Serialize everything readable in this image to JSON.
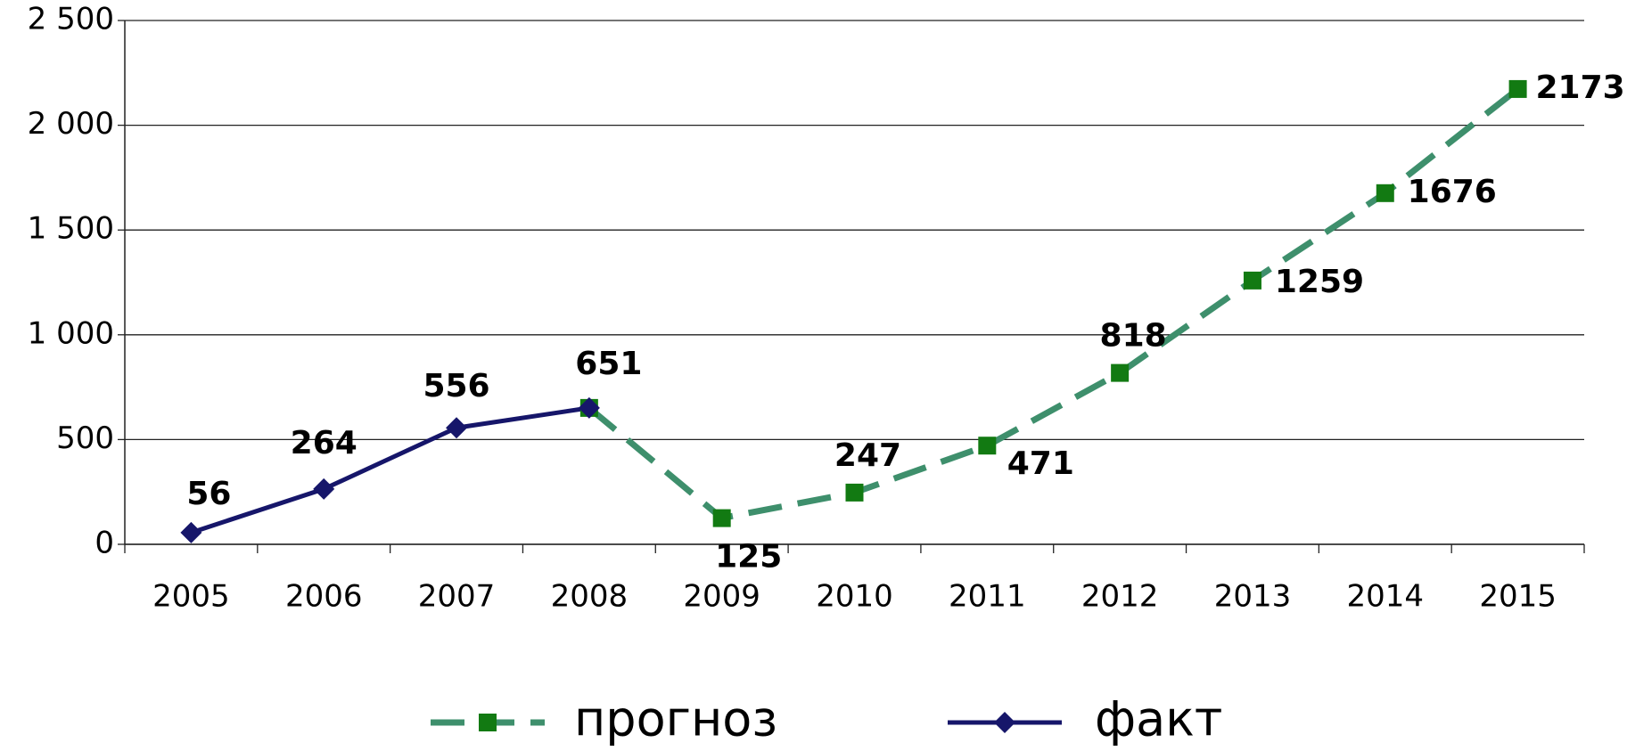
{
  "chart_data": {
    "type": "line",
    "categories": [
      "2005",
      "2006",
      "2007",
      "2008",
      "2009",
      "2010",
      "2011",
      "2012",
      "2013",
      "2014",
      "2015"
    ],
    "series": [
      {
        "name": "прогноз",
        "color": "#3e8f6c",
        "marker_color": "#127a12",
        "marker": "square",
        "dashed": true,
        "values": [
          null,
          null,
          null,
          651,
          125,
          247,
          471,
          818,
          1259,
          1676,
          2173
        ]
      },
      {
        "name": "факт",
        "color": "#16166a",
        "marker_color": "#16166a",
        "marker": "diamond",
        "dashed": false,
        "values": [
          56,
          264,
          556,
          651,
          null,
          null,
          null,
          null,
          null,
          null,
          null
        ]
      }
    ],
    "ylim": [
      0,
      2500
    ],
    "yticks": [
      0,
      500,
      {
        "value": 1000,
        "label": "1 000"
      },
      {
        "value": 1500,
        "label": "1 500"
      },
      {
        "value": 2000,
        "label": "2 000"
      },
      {
        "value": 2500,
        "label": "2 500"
      }
    ],
    "grid": true,
    "legend": "bottom"
  }
}
